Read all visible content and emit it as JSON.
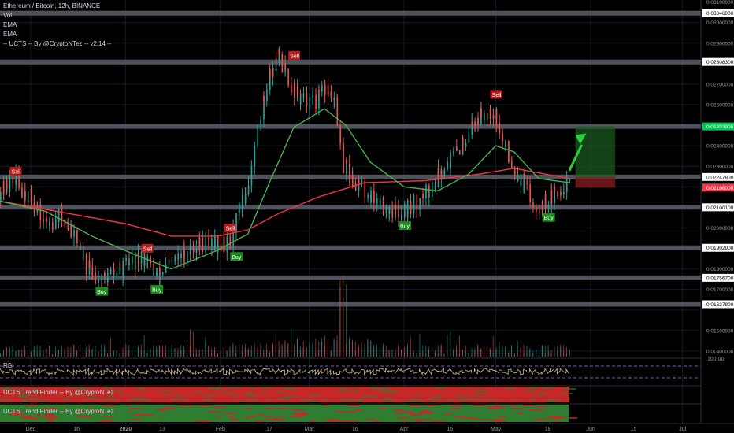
{
  "header": {
    "symbol_title": "Ethereum / Bitcoin, 12h, BINANCE",
    "indicators": [
      "Vol",
      "EMA",
      "EMA",
      "-- UCTS -- By @CryptoNTez -- v2.14 --"
    ]
  },
  "colors": {
    "background": "#000000",
    "up_candle": "#26a69a",
    "down_candle": "#ef5350",
    "ema_fast": "#4caf50",
    "ema_slow": "#f23645",
    "sr_band": "#5d606b",
    "buy_label": "#1b8a1b",
    "sell_label": "#b71c1c",
    "target_zone": "#1b5e20",
    "stop_zone": "#7f1d1d",
    "rsi_line": "#d4b896",
    "rsi_bound": "#7e57c2",
    "trend_red": "#c62828",
    "trend_green": "#2e7d32"
  },
  "chart_data": {
    "type": "candlestick",
    "symbol": "Ethereum / Bitcoin",
    "interval": "12h",
    "exchange": "BINANCE",
    "y_axis_ticks": [
      "0.03100000",
      "0.03046000",
      "0.03000000",
      "0.02900000",
      "0.02808300",
      "0.02700000",
      "0.02600000",
      "0.02400000",
      "0.02300000",
      "0.02100100",
      "0.02000000",
      "0.01902900",
      "0.01800000",
      "0.01756700",
      "0.01700000",
      "0.01627800",
      "0.01500000",
      "0.01400000"
    ],
    "price_badges": [
      {
        "label": "0.02493900",
        "value": 0.02494,
        "color": "green"
      },
      {
        "label": "0.02247800",
        "value": 0.022478,
        "color": "white"
      },
      {
        "label": "0.02196000",
        "value": 0.02196,
        "color": "red"
      }
    ],
    "support_resistance_levels": [
      0.03046,
      0.02808,
      0.02494,
      0.022478,
      0.021001,
      0.019029,
      0.017567,
      0.016278
    ],
    "x_axis_labels": [
      "Dec",
      "16",
      "2020",
      "13",
      "Feb",
      "17",
      "Mar",
      "16",
      "Apr",
      "16",
      "May",
      "18",
      "Jun",
      "15",
      "Jul"
    ],
    "x_axis_months": [
      "2019-12",
      "2020-01",
      "2020-02",
      "2020-03",
      "2020-04",
      "2020-05",
      "2020-06",
      "2020-07"
    ],
    "price_path": [
      [
        "2019-11-21",
        0.02175
      ],
      [
        "2019-11-26",
        0.02235
      ],
      [
        "2019-12-01",
        0.02145
      ],
      [
        "2019-12-06",
        0.0202
      ],
      [
        "2019-12-11",
        0.0206
      ],
      [
        "2019-12-16",
        0.0196
      ],
      [
        "2019-12-19",
        0.0181
      ],
      [
        "2019-12-24",
        0.0175
      ],
      [
        "2019-12-29",
        0.0178
      ],
      [
        "2020-01-03",
        0.0183
      ],
      [
        "2020-01-08",
        0.0186
      ],
      [
        "2020-01-11",
        0.0176
      ],
      [
        "2020-01-15",
        0.0181
      ],
      [
        "2020-01-20",
        0.0187
      ],
      [
        "2020-01-25",
        0.0192
      ],
      [
        "2020-01-30",
        0.0193
      ],
      [
        "2020-02-04",
        0.0192
      ],
      [
        "2020-02-07",
        0.0205
      ],
      [
        "2020-02-11",
        0.0225
      ],
      [
        "2020-02-14",
        0.0253
      ],
      [
        "2020-02-17",
        0.0275
      ],
      [
        "2020-02-20",
        0.0283
      ],
      [
        "2020-02-24",
        0.0271
      ],
      [
        "2020-02-27",
        0.0263
      ],
      [
        "2020-03-03",
        0.0261
      ],
      [
        "2020-03-07",
        0.0268
      ],
      [
        "2020-03-10",
        0.0258
      ],
      [
        "2020-03-12",
        0.0231
      ],
      [
        "2020-03-16",
        0.0223
      ],
      [
        "2020-03-20",
        0.0217
      ],
      [
        "2020-03-25",
        0.0211
      ],
      [
        "2020-03-31",
        0.0207
      ],
      [
        "2020-04-05",
        0.0212
      ],
      [
        "2020-04-10",
        0.022
      ],
      [
        "2020-04-14",
        0.023
      ],
      [
        "2020-04-19",
        0.0238
      ],
      [
        "2020-04-24",
        0.0252
      ],
      [
        "2020-04-29",
        0.0258
      ],
      [
        "2020-05-01",
        0.0256
      ],
      [
        "2020-05-03",
        0.0243
      ],
      [
        "2020-05-06",
        0.0233
      ],
      [
        "2020-05-10",
        0.0221
      ],
      [
        "2020-05-14",
        0.0211
      ],
      [
        "2020-05-18",
        0.0213
      ],
      [
        "2020-05-23",
        0.022
      ],
      [
        "2020-05-25",
        0.0225
      ]
    ],
    "ema_fast": [
      [
        "2019-11-21",
        0.0213
      ],
      [
        "2019-12-06",
        0.0208
      ],
      [
        "2019-12-21",
        0.0196
      ],
      [
        "2020-01-04",
        0.0187
      ],
      [
        "2020-01-16",
        0.018
      ],
      [
        "2020-01-31",
        0.0189
      ],
      [
        "2020-02-10",
        0.0197
      ],
      [
        "2020-02-17",
        0.0222
      ],
      [
        "2020-02-25",
        0.0249
      ],
      [
        "2020-03-06",
        0.0258
      ],
      [
        "2020-03-13",
        0.025
      ],
      [
        "2020-03-21",
        0.0232
      ],
      [
        "2020-04-01",
        0.022
      ],
      [
        "2020-04-12",
        0.0218
      ],
      [
        "2020-04-22",
        0.0226
      ],
      [
        "2020-05-01",
        0.024
      ],
      [
        "2020-05-07",
        0.0237
      ],
      [
        "2020-05-15",
        0.0224
      ],
      [
        "2020-05-25",
        0.0222
      ]
    ],
    "ema_slow": [
      [
        "2019-11-21",
        0.0213
      ],
      [
        "2019-12-06",
        0.0209
      ],
      [
        "2020-01-01",
        0.0202
      ],
      [
        "2020-01-16",
        0.0196
      ],
      [
        "2020-01-31",
        0.0196
      ],
      [
        "2020-02-10",
        0.0199
      ],
      [
        "2020-02-20",
        0.0207
      ],
      [
        "2020-03-04",
        0.0215
      ],
      [
        "2020-03-19",
        0.0222
      ],
      [
        "2020-04-08",
        0.0223
      ],
      [
        "2020-04-25",
        0.0226
      ],
      [
        "2020-05-07",
        0.0229
      ],
      [
        "2020-05-25",
        0.0224
      ]
    ],
    "signals": [
      {
        "label": "Sell",
        "date": "2019-11-26",
        "price": 0.02235
      },
      {
        "label": "Buy",
        "date": "2019-12-24",
        "price": 0.0175
      },
      {
        "label": "Sell",
        "date": "2020-01-08",
        "price": 0.0186
      },
      {
        "label": "Buy",
        "date": "2020-01-11",
        "price": 0.0176
      },
      {
        "label": "Sell",
        "date": "2020-02-04",
        "price": 0.0196
      },
      {
        "label": "Buy",
        "date": "2020-02-06",
        "price": 0.0192
      },
      {
        "label": "Sell",
        "date": "2020-02-25",
        "price": 0.028
      },
      {
        "label": "Buy",
        "date": "2020-04-01",
        "price": 0.0207
      },
      {
        "label": "Sell",
        "date": "2020-05-01",
        "price": 0.0261
      },
      {
        "label": "Buy",
        "date": "2020-05-18",
        "price": 0.0211
      }
    ],
    "trade_setup": {
      "start": "2020-05-27",
      "end": "2020-06-09",
      "entry": 0.022478,
      "target": 0.02494,
      "stop": 0.02196
    },
    "volume_profile": [
      [
        "2019-11-21",
        0.25
      ],
      [
        "2019-12-20",
        0.35
      ],
      [
        "2020-01-15",
        0.3
      ],
      [
        "2020-02-17",
        0.45
      ],
      [
        "2020-03-12",
        1.0
      ],
      [
        "2020-03-25",
        0.4
      ],
      [
        "2020-04-20",
        0.35
      ],
      [
        "2020-05-25",
        0.3
      ]
    ],
    "panes": [
      {
        "name": "RSI",
        "upper": 70,
        "lower": 30,
        "scale_label": "100.00"
      },
      {
        "name": "UCTS Trend Finder -- By @CryptoNTez"
      },
      {
        "name": "UCTS Trend Finder -- By @CryptoNTez"
      }
    ],
    "grid": true
  }
}
